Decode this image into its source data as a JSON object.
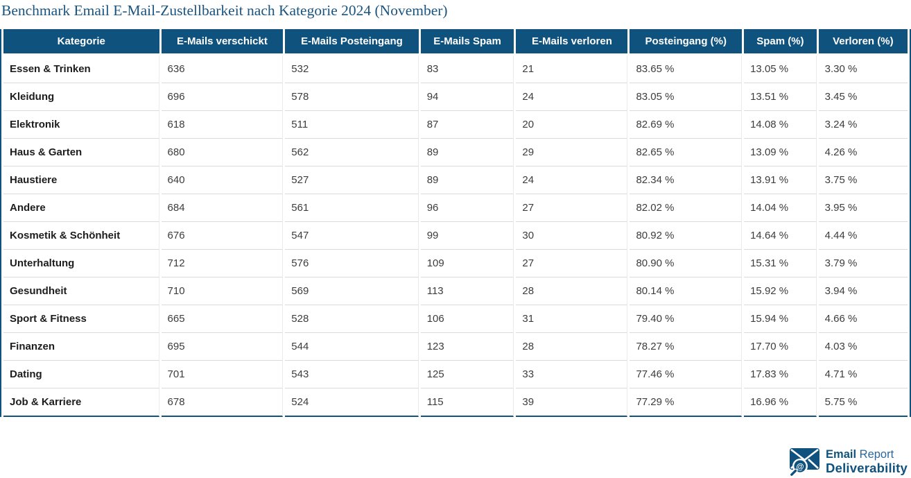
{
  "chart_data": {
    "type": "table",
    "title": "Benchmark Email E-Mail-Zustellbarkeit nach Kategorie 2024 (November)",
    "columns": [
      "Kategorie",
      "E-Mails verschickt",
      "E-Mails Posteingang",
      "E-Mails Spam",
      "E-Mails verloren",
      "Posteingang (%)",
      "Spam (%)",
      "Verloren (%)"
    ],
    "rows": [
      [
        "Essen & Trinken",
        "636",
        "532",
        "83",
        "21",
        "83.65 %",
        "13.05 %",
        "3.30 %"
      ],
      [
        "Kleidung",
        "696",
        "578",
        "94",
        "24",
        "83.05 %",
        "13.51 %",
        "3.45 %"
      ],
      [
        "Elektronik",
        "618",
        "511",
        "87",
        "20",
        "82.69 %",
        "14.08 %",
        "3.24 %"
      ],
      [
        "Haus & Garten",
        "680",
        "562",
        "89",
        "29",
        "82.65 %",
        "13.09 %",
        "4.26 %"
      ],
      [
        "Haustiere",
        "640",
        "527",
        "89",
        "24",
        "82.34 %",
        "13.91 %",
        "3.75 %"
      ],
      [
        "Andere",
        "684",
        "561",
        "96",
        "27",
        "82.02 %",
        "14.04 %",
        "3.95 %"
      ],
      [
        "Kosmetik & Schönheit",
        "676",
        "547",
        "99",
        "30",
        "80.92 %",
        "14.64 %",
        "4.44 %"
      ],
      [
        "Unterhaltung",
        "712",
        "576",
        "109",
        "27",
        "80.90 %",
        "15.31 %",
        "3.79 %"
      ],
      [
        "Gesundheit",
        "710",
        "569",
        "113",
        "28",
        "80.14 %",
        "15.92 %",
        "3.94 %"
      ],
      [
        "Sport & Fitness",
        "665",
        "528",
        "106",
        "31",
        "79.40 %",
        "15.94 %",
        "4.66 %"
      ],
      [
        "Finanzen",
        "695",
        "544",
        "123",
        "28",
        "78.27 %",
        "17.70 %",
        "4.03 %"
      ],
      [
        "Dating",
        "701",
        "543",
        "125",
        "33",
        "77.46 %",
        "17.83 %",
        "4.71 %"
      ],
      [
        "Job & Karriere",
        "678",
        "524",
        "115",
        "39",
        "77.29 %",
        "16.96 %",
        "5.75 %"
      ]
    ],
    "column_widths_percent": [
      17.5,
      13.7,
      15.0,
      10.5,
      12.55,
      12.6,
      8.15,
      9.97
    ]
  },
  "logo": {
    "name_bold": "Email",
    "name_regular": "Report",
    "name_line2": "Deliverability",
    "icon": "envelope-magnifier-at-icon"
  },
  "colors": {
    "accent": "#0F527E",
    "header_bg": "#0F527E",
    "title": "#1A5480",
    "row_line": "#DADADA",
    "cell_text": "#3C3C3C"
  }
}
